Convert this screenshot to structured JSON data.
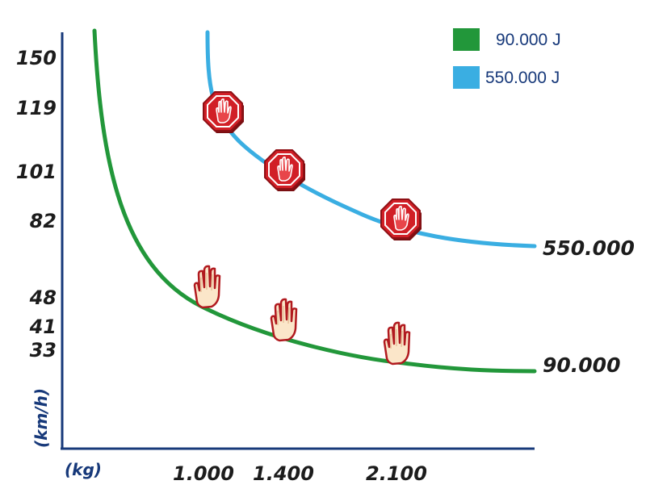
{
  "chart_data": {
    "type": "line",
    "ylabel": "(km/h)",
    "xlabel": "(kg)",
    "y_ticks": [
      "150",
      "119",
      "101",
      "82",
      "48",
      "41",
      "33"
    ],
    "x_ticks": [
      "1.000",
      "1.400",
      "2.100"
    ],
    "legend_position": "top-right",
    "grid": false,
    "series": [
      {
        "name": "90.000 J",
        "end_label": "90.000",
        "color": "#22973a",
        "marker_icon": "hand-icon",
        "marked_points": [
          {
            "x": "1.000",
            "y": "48"
          },
          {
            "x": "1.400",
            "y": "41"
          },
          {
            "x": "2.100",
            "y": "33"
          }
        ]
      },
      {
        "name": "550.000 J",
        "end_label": "550.000",
        "color": "#3aaee2",
        "marker_icon": "stop-sign-icon",
        "marked_points": [
          {
            "x": "1.000",
            "y": "119"
          },
          {
            "x": "1.400",
            "y": "101"
          },
          {
            "x": "2.100",
            "y": "82"
          }
        ]
      }
    ]
  }
}
